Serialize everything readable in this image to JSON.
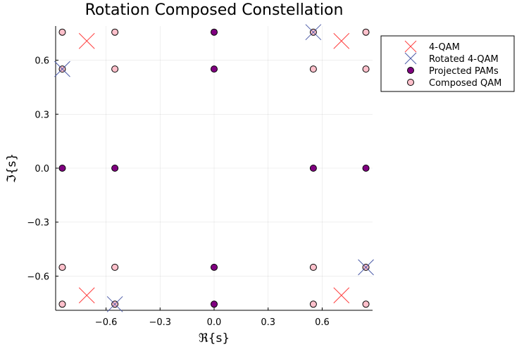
{
  "chart_data": {
    "type": "scatter",
    "title": "Rotation Composed Constellation",
    "xlabel": "ℜ{s}",
    "ylabel": "ℑ{s}",
    "xlim": [
      -0.88,
      0.88
    ],
    "ylim": [
      -0.79,
      0.79
    ],
    "xticks": [
      -0.6,
      -0.3,
      0.0,
      0.3,
      0.6
    ],
    "xtick_labels": [
      "−0.6",
      "−0.3",
      "0.0",
      "0.3",
      "0.6"
    ],
    "yticks": [
      -0.6,
      -0.3,
      0.0,
      0.3,
      0.6
    ],
    "ytick_labels": [
      "−0.6",
      "−0.3",
      "0.0",
      "0.3",
      "0.6"
    ],
    "grid": true,
    "legend_position": "outside top-right",
    "series": [
      {
        "name": "Composed QAM",
        "marker": "circle",
        "color": "#FFC0CB",
        "points": [
          [
            -0.843,
            0.756
          ],
          [
            -0.551,
            0.756
          ],
          [
            0.551,
            0.756
          ],
          [
            0.843,
            0.756
          ],
          [
            -0.843,
            0.551
          ],
          [
            -0.551,
            0.551
          ],
          [
            0.551,
            0.551
          ],
          [
            0.843,
            0.551
          ],
          [
            -0.843,
            -0.551
          ],
          [
            -0.551,
            -0.551
          ],
          [
            0.551,
            -0.551
          ],
          [
            0.843,
            -0.551
          ],
          [
            -0.843,
            -0.756
          ],
          [
            -0.551,
            -0.756
          ],
          [
            0.551,
            -0.756
          ],
          [
            0.843,
            -0.756
          ]
        ]
      },
      {
        "name": "Projected PAMs",
        "marker": "circle",
        "color": "#800080",
        "points": [
          [
            0.0,
            0.756
          ],
          [
            0.0,
            0.551
          ],
          [
            0.0,
            -0.551
          ],
          [
            0.0,
            -0.756
          ],
          [
            -0.843,
            0.0
          ],
          [
            -0.551,
            0.0
          ],
          [
            0.551,
            0.0
          ],
          [
            0.843,
            0.0
          ]
        ]
      },
      {
        "name": "4-QAM",
        "marker": "x",
        "color": "#FF4040",
        "points": [
          [
            -0.707,
            0.707
          ],
          [
            0.707,
            0.707
          ],
          [
            -0.707,
            -0.707
          ],
          [
            0.707,
            -0.707
          ]
        ]
      },
      {
        "name": "Rotated 4-QAM",
        "marker": "x",
        "color": "#4B5BA8",
        "points": [
          [
            0.551,
            0.756
          ],
          [
            -0.843,
            0.551
          ],
          [
            0.843,
            -0.551
          ],
          [
            -0.551,
            -0.756
          ]
        ]
      }
    ],
    "legend_order": [
      "4-QAM",
      "Rotated 4-QAM",
      "Projected PAMs",
      "Composed QAM"
    ]
  }
}
